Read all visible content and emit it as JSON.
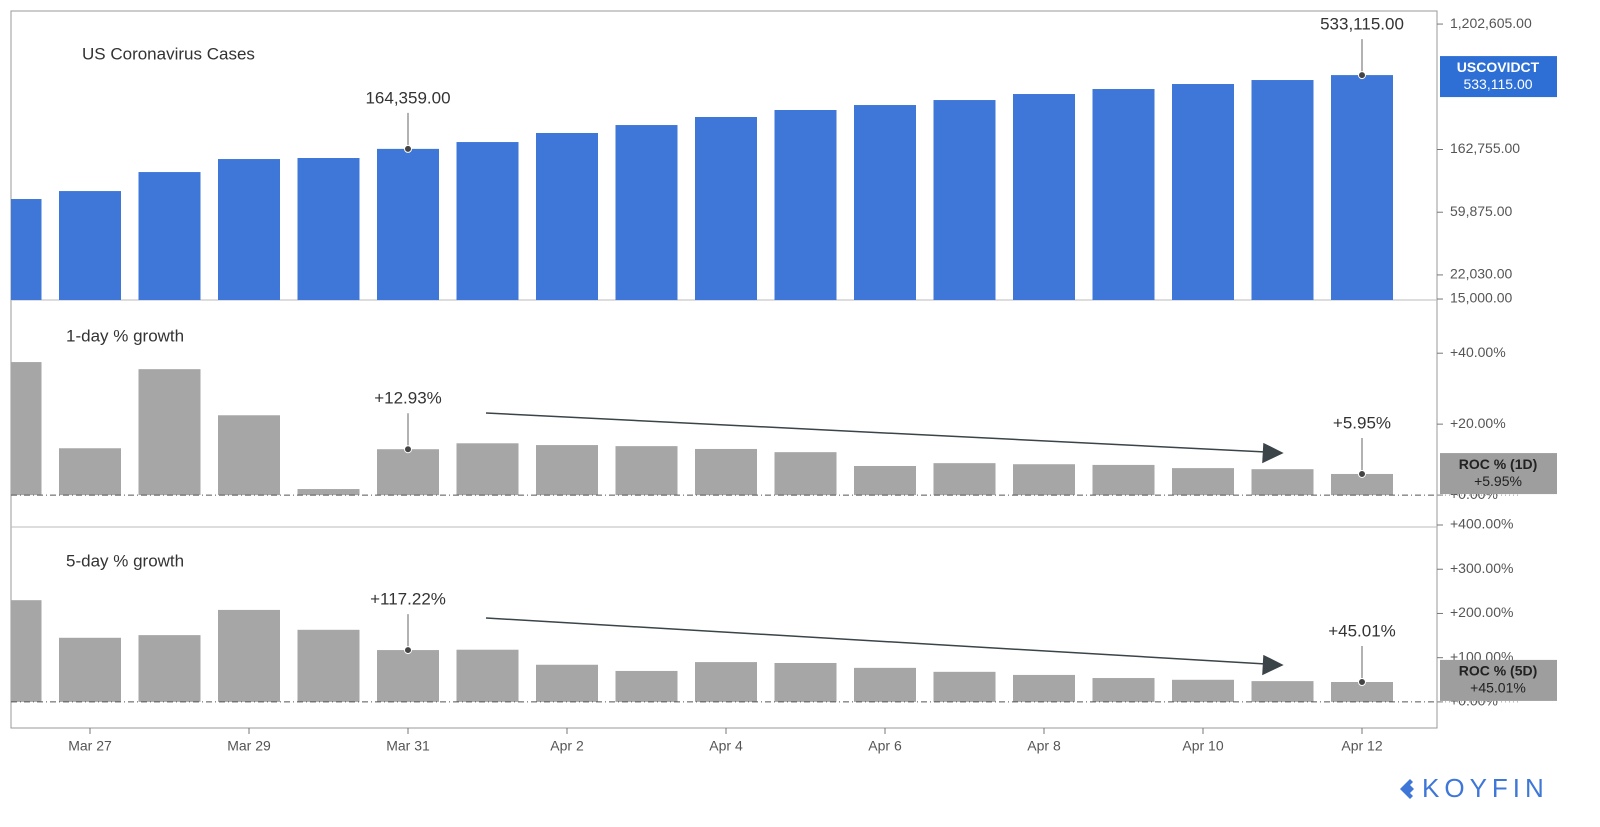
{
  "chart_data": [
    {
      "type": "bar",
      "title": "US Coronavirus Cases",
      "log_scale": true,
      "ylim": [
        14770,
        1481000
      ],
      "yticks": [
        {
          "value": 15000,
          "label": "15,000.00"
        },
        {
          "value": 22030,
          "label": "22,030.00"
        },
        {
          "value": 59875,
          "label": "59,875.00"
        },
        {
          "value": 162755,
          "label": "162,755.00"
        },
        {
          "value": 1202605,
          "label": "1,202,605.00"
        }
      ],
      "series": [
        {
          "name": "USCOVIDCT",
          "color": "#3f77d8",
          "values": [
            73900,
            83900,
            113600,
            139800,
            142100,
            164359,
            183300,
            211700,
            240400,
            273200,
            305500,
            330700,
            358100,
            394200,
            426900,
            462400,
            492700,
            533115
          ],
          "value_labels": [
            null,
            null,
            null,
            null,
            null,
            "164,359.00",
            null,
            null,
            null,
            null,
            null,
            null,
            null,
            null,
            null,
            null,
            null,
            "533,115.00"
          ]
        }
      ]
    },
    {
      "type": "bar",
      "title": "1-day % growth",
      "ylim": [
        -9,
        55
      ],
      "yticks": [
        {
          "value": 0,
          "label": "+0.00%"
        },
        {
          "value": 20,
          "label": "+20.00%"
        },
        {
          "value": 40,
          "label": "+40.00%"
        }
      ],
      "series": [
        {
          "name": "ROC % (1D)",
          "color": "#a6a6a6",
          "values": [
            37.5,
            13.2,
            35.5,
            22.5,
            1.7,
            12.93,
            14.6,
            14.1,
            13.8,
            13.0,
            12.1,
            8.2,
            9.0,
            8.7,
            8.5,
            7.6,
            7.3,
            5.95
          ],
          "value_labels": [
            null,
            null,
            null,
            null,
            null,
            "+12.93%",
            null,
            null,
            null,
            null,
            null,
            null,
            null,
            null,
            null,
            null,
            null,
            "+5.95%"
          ]
        }
      ]
    },
    {
      "type": "bar",
      "title": "5-day % growth",
      "ylim": [
        -59,
        400
      ],
      "yticks": [
        {
          "value": 0,
          "label": "+0.00%"
        },
        {
          "value": 100,
          "label": "+100.00%"
        },
        {
          "value": 200,
          "label": "+200.00%"
        },
        {
          "value": 300,
          "label": "+300.00%"
        },
        {
          "value": 400,
          "label": "+400.00%"
        }
      ],
      "categories": [
        null,
        "Mar 27",
        null,
        "Mar 29",
        null,
        "Mar 31",
        null,
        "Apr 2",
        null,
        "Apr 4",
        null,
        "Apr 6",
        null,
        "Apr 8",
        null,
        "Apr 10",
        null,
        "Apr 12"
      ],
      "series": [
        {
          "name": "ROC % (5D)",
          "color": "#a6a6a6",
          "values": [
            230,
            145,
            151,
            208,
            163,
            117.22,
            118,
            84,
            70,
            90,
            88,
            77,
            68,
            61,
            54,
            50,
            47,
            45.01
          ],
          "value_labels": [
            null,
            null,
            null,
            null,
            null,
            "+117.22%",
            null,
            null,
            null,
            null,
            null,
            null,
            null,
            null,
            null,
            null,
            null,
            "+45.01%"
          ]
        }
      ]
    }
  ],
  "logo": "KOYFIN"
}
